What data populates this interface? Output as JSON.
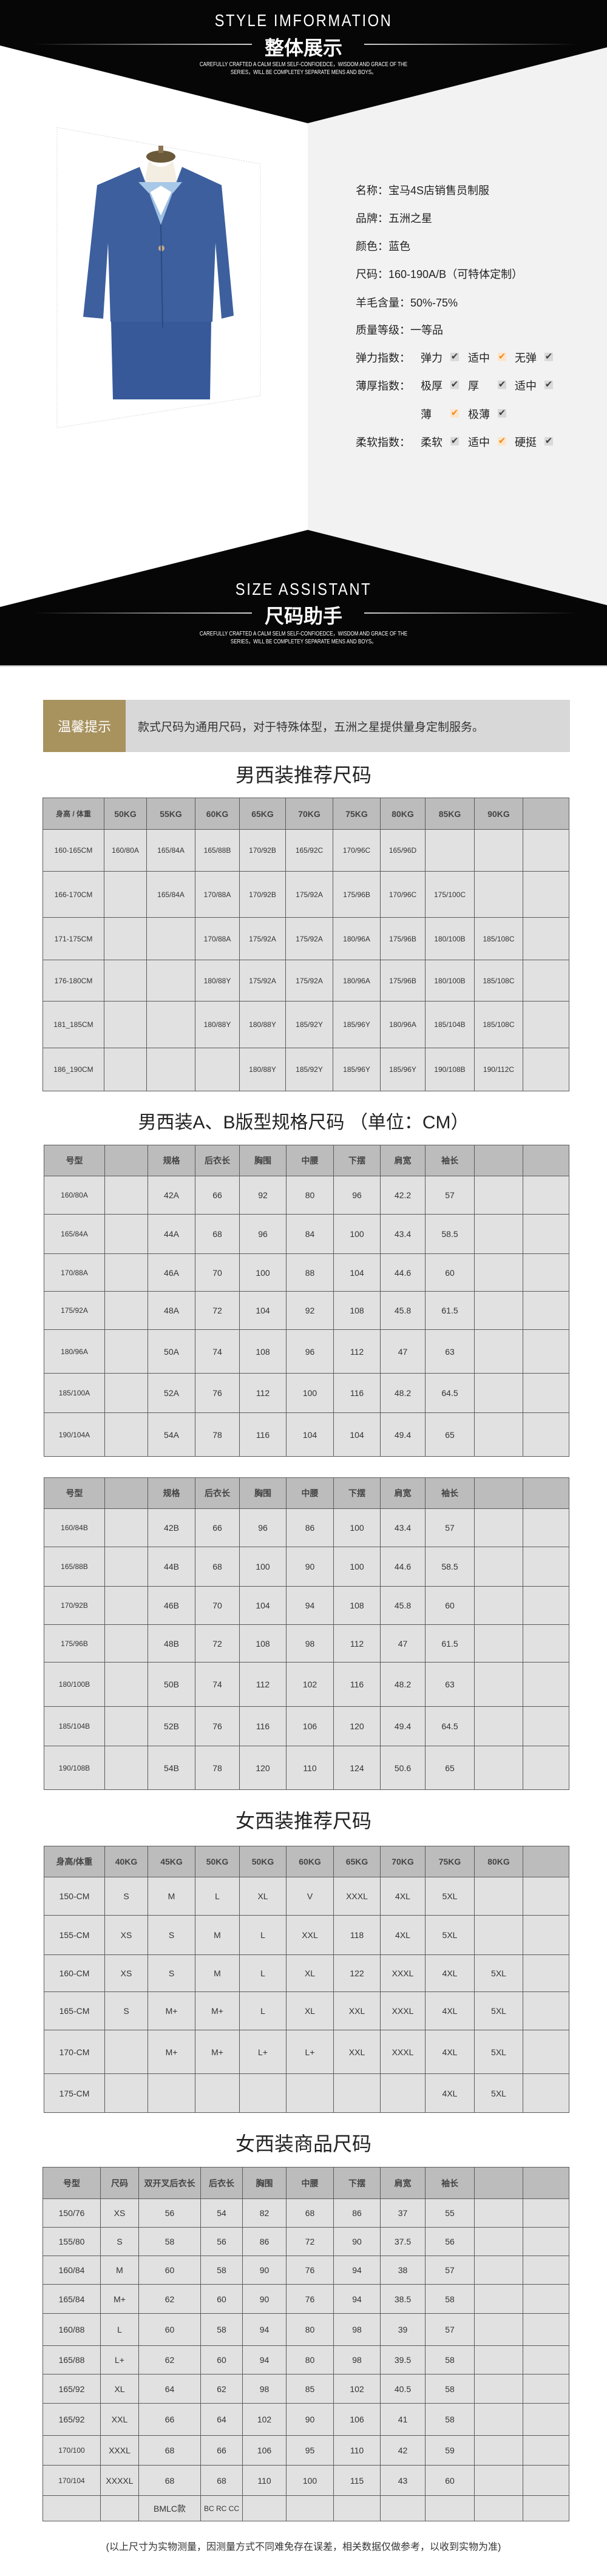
{
  "header": {
    "title_en": "STYLE IMFORMATION",
    "title_cn": "整体展示",
    "tagline_1": "CAREFULLY CRAFTED A CALM SELM SELF-CONFIOEDCE，WISDOM AND GRACE OF THE",
    "tagline_2": "SERIES，WILL BE COMPLETEY SEPARATE MENS AND BOYS。"
  },
  "product": {
    "specs": [
      {
        "label": "名称：",
        "value": "宝马4S店销售员制服"
      },
      {
        "label": "品牌：",
        "value": "五洲之星"
      },
      {
        "label": "颜色：",
        "value": "蓝色"
      },
      {
        "label": "尺码：",
        "value": "160-190A/B（可特体定制）"
      },
      {
        "label": "羊毛含量：",
        "value": "50%-75%"
      },
      {
        "label": "质量等级：",
        "value": "一等品"
      }
    ],
    "indices": [
      {
        "label": "弹力指数：",
        "options": [
          {
            "label": "弹力",
            "checked": false
          },
          {
            "label": "适中",
            "checked": true
          },
          {
            "label": "无弹",
            "checked": false
          }
        ]
      },
      {
        "label": "薄厚指数：",
        "options": [
          {
            "label": "极厚",
            "checked": false
          },
          {
            "label": "厚",
            "checked": false
          },
          {
            "label": "适中",
            "checked": false
          }
        ]
      },
      {
        "label": "",
        "options": [
          {
            "label": "薄",
            "checked": true
          },
          {
            "label": "极薄",
            "checked": false
          }
        ]
      },
      {
        "label": "柔软指数：",
        "options": [
          {
            "label": "柔软",
            "checked": false
          },
          {
            "label": "适中",
            "checked": true
          },
          {
            "label": "硬挺",
            "checked": false
          }
        ]
      }
    ],
    "check_mark": "✔",
    "colors": {
      "check_default": "#3f3f3f",
      "check_selected": "#f08a1c",
      "suit": "#3d5f9e",
      "shirt": "#9dc0e3"
    }
  },
  "size_banner": {
    "title_en": "SIZE ASSISTANT",
    "title_cn": "尺码助手",
    "tagline_1": "CAREFULLY CRAFTED A CALM SELM SELF-CONFIOEDCE，WISDOM AND GRACE OF THE",
    "tagline_2": "SERIES，WILL BE COMPLETEY SEPARATE MENS AND BOYS。"
  },
  "tip": {
    "label": "温馨提示",
    "text": "款式尺码为通用尺码，对于特殊体型，五洲之星提供量身定制服务。",
    "color": "#a8925e"
  },
  "tables": [
    {
      "title": "男西装推荐尺码",
      "headers": [
        "身高 / 体重",
        "50KG",
        "55KG",
        "60KG",
        "65KG",
        "70KG",
        "75KG",
        "80KG",
        "85KG",
        "90KG",
        ""
      ],
      "rows": [
        [
          "160-165CM",
          "160/80A",
          "165/84A",
          "165/88B",
          "170/92B",
          "165/92C",
          "170/96C",
          "165/96D",
          "",
          "",
          ""
        ],
        [
          "166-170CM",
          "",
          "165/84A",
          "170/88A",
          "170/92B",
          "175/92A",
          "175/96B",
          "170/96C",
          "175/100C",
          "",
          ""
        ],
        [
          "171-175CM",
          "",
          "",
          "170/88A",
          "175/92A",
          "175/92A",
          "180/96A",
          "175/96B",
          "180/100B",
          "185/108C",
          ""
        ],
        [
          "176-180CM",
          "",
          "",
          "180/88Y",
          "175/92A",
          "175/92A",
          "180/96A",
          "175/96B",
          "180/100B",
          "185/108C",
          ""
        ],
        [
          "181_185CM",
          "",
          "",
          "180/88Y",
          "180/88Y",
          "185/92Y",
          "185/96Y",
          "180/96A",
          "185/104B",
          "185/108C",
          ""
        ],
        [
          "186_190CM",
          "",
          "",
          "",
          "180/88Y",
          "185/92Y",
          "185/96Y",
          "185/96Y",
          "190/108B",
          "190/112C",
          ""
        ]
      ]
    },
    {
      "title": "男西装A、B版型规格尺码 （单位：CM）",
      "headers": [
        "号型",
        "",
        "规格",
        "后衣长",
        "胸围",
        "中腰",
        "下摆",
        "肩宽",
        "袖长",
        "",
        ""
      ],
      "rows": [
        [
          "160/80A",
          "",
          "42A",
          "66",
          "92",
          "80",
          "96",
          "42.2",
          "57",
          "",
          ""
        ],
        [
          "165/84A",
          "",
          "44A",
          "68",
          "96",
          "84",
          "100",
          "43.4",
          "58.5",
          "",
          ""
        ],
        [
          "170/88A",
          "",
          "46A",
          "70",
          "100",
          "88",
          "104",
          "44.6",
          "60",
          "",
          ""
        ],
        [
          "175/92A",
          "",
          "48A",
          "72",
          "104",
          "92",
          "108",
          "45.8",
          "61.5",
          "",
          ""
        ],
        [
          "180/96A",
          "",
          "50A",
          "74",
          "108",
          "96",
          "112",
          "47",
          "63",
          "",
          ""
        ],
        [
          "185/100A",
          "",
          "52A",
          "76",
          "112",
          "100",
          "116",
          "48.2",
          "64.5",
          "",
          ""
        ],
        [
          "190/104A",
          "",
          "54A",
          "78",
          "116",
          "104",
          "104",
          "49.4",
          "65",
          "",
          ""
        ]
      ]
    },
    {
      "title": "",
      "headers": [
        "号型",
        "",
        "规格",
        "后衣长",
        "胸围",
        "中腰",
        "下摆",
        "肩宽",
        "袖长",
        "",
        ""
      ],
      "rows": [
        [
          "160/84B",
          "",
          "42B",
          "66",
          "96",
          "86",
          "100",
          "43.4",
          "57",
          "",
          ""
        ],
        [
          "165/88B",
          "",
          "44B",
          "68",
          "100",
          "90",
          "100",
          "44.6",
          "58.5",
          "",
          ""
        ],
        [
          "170/92B",
          "",
          "46B",
          "70",
          "104",
          "94",
          "108",
          "45.8",
          "60",
          "",
          ""
        ],
        [
          "175/96B",
          "",
          "48B",
          "72",
          "108",
          "98",
          "112",
          "47",
          "61.5",
          "",
          ""
        ],
        [
          "180/100B",
          "",
          "50B",
          "74",
          "112",
          "102",
          "116",
          "48.2",
          "63",
          "",
          ""
        ],
        [
          "185/104B",
          "",
          "52B",
          "76",
          "116",
          "106",
          "120",
          "49.4",
          "64.5",
          "",
          ""
        ],
        [
          "190/108B",
          "",
          "54B",
          "78",
          "120",
          "110",
          "124",
          "50.6",
          "65",
          "",
          ""
        ]
      ]
    },
    {
      "title": "女西装推荐尺码",
      "headers": [
        "身高/体重",
        "40KG",
        "45KG",
        "50KG",
        "50KG",
        "60KG",
        "65KG",
        "70KG",
        "75KG",
        "80KG",
        ""
      ],
      "rows": [
        [
          "150-CM",
          "S",
          "M",
          "L",
          "XL",
          "V",
          "XXXL",
          "4XL",
          "5XL",
          "",
          ""
        ],
        [
          "155-CM",
          "XS",
          "S",
          "M",
          "L",
          "XXL",
          "118",
          "4XL",
          "5XL",
          "",
          ""
        ],
        [
          "160-CM",
          "XS",
          "S",
          "M",
          "L",
          "XL",
          "122",
          "XXXL",
          "4XL",
          "5XL",
          ""
        ],
        [
          "165-CM",
          "S",
          "M+",
          "M+",
          "L",
          "XL",
          "XXL",
          "XXXL",
          "4XL",
          "5XL",
          ""
        ],
        [
          "170-CM",
          "",
          "M+",
          "M+",
          "L+",
          "L+",
          "XXL",
          "XXXL",
          "4XL",
          "5XL",
          ""
        ],
        [
          "175-CM",
          "",
          "",
          "",
          "",
          "",
          "",
          "",
          "4XL",
          "5XL",
          ""
        ]
      ]
    },
    {
      "title": "女西装商品尺码",
      "headers": [
        "号型",
        "尺码",
        "双开叉后衣长",
        "后衣长",
        "胸围",
        "中腰",
        "下摆",
        "肩宽",
        "袖长",
        "",
        ""
      ],
      "rows": [
        [
          "150/76",
          "XS",
          "56",
          "54",
          "82",
          "68",
          "86",
          "37",
          "55",
          "",
          ""
        ],
        [
          "155/80",
          "S",
          "58",
          "56",
          "86",
          "72",
          "90",
          "37.5",
          "56",
          "",
          ""
        ],
        [
          "160/84",
          "M",
          "60",
          "58",
          "90",
          "76",
          "94",
          "38",
          "57",
          "",
          ""
        ],
        [
          "165/84",
          "M+",
          "62",
          "60",
          "90",
          "76",
          "94",
          "38.5",
          "58",
          "",
          ""
        ],
        [
          "160/88",
          "L",
          "60",
          "58",
          "94",
          "80",
          "98",
          "39",
          "57",
          "",
          ""
        ],
        [
          "165/88",
          "L+",
          "62",
          "60",
          "94",
          "80",
          "98",
          "39.5",
          "58",
          "",
          ""
        ],
        [
          "165/92",
          "XL",
          "64",
          "62",
          "98",
          "85",
          "102",
          "40.5",
          "58",
          "",
          ""
        ],
        [
          "165/92",
          "XXL",
          "66",
          "64",
          "102",
          "90",
          "106",
          "41",
          "58",
          "",
          ""
        ],
        [
          "170/100",
          "XXXL",
          "68",
          "66",
          "106",
          "95",
          "110",
          "42",
          "59",
          "",
          ""
        ],
        [
          "170/104",
          "XXXXL",
          "68",
          "68",
          "110",
          "100",
          "115",
          "43",
          "60",
          "",
          ""
        ],
        [
          "",
          "",
          "BMLC款",
          "BC RC CC",
          "",
          "",
          "",
          "",
          "",
          "",
          ""
        ]
      ]
    }
  ],
  "footer_note": "(以上尺寸为实物测量，因测量方式不同难免存在误差，相关数据仅做参考，以收到实物为准)"
}
